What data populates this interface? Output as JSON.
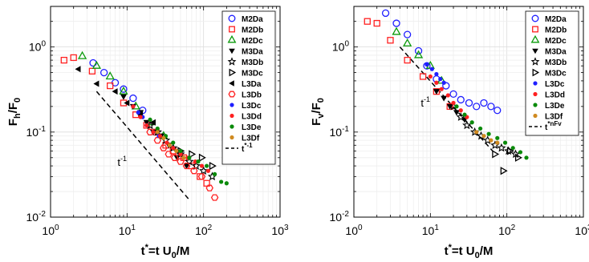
{
  "chart_data": [
    {
      "type": "scatter",
      "xscale": "log",
      "yscale": "log",
      "xlim": [
        1,
        1000
      ],
      "ylim": [
        0.01,
        3
      ],
      "xlabel": {
        "base": "t",
        "sup": "*",
        "rest": "=t U",
        "sub": "0",
        "tail": "/M"
      },
      "ylabel": {
        "base": "F",
        "sub1": "h",
        "mid": "/F",
        "sub2": "0"
      },
      "xticks": [
        {
          "v": 1,
          "b": "10",
          "e": "0"
        },
        {
          "v": 10,
          "b": "10",
          "e": "1"
        },
        {
          "v": 100,
          "b": "10",
          "e": "2"
        },
        {
          "v": 1000,
          "b": "10",
          "e": "3"
        }
      ],
      "yticks": [
        {
          "v": 0.01,
          "b": "10",
          "e": "-2"
        },
        {
          "v": 0.1,
          "b": "10",
          "e": "-1"
        },
        {
          "v": 1,
          "b": "10",
          "e": "0"
        }
      ],
      "annotation": {
        "base": "t",
        "sup": "-1",
        "x": 7.5,
        "y": 0.04
      },
      "fit_line": {
        "x": [
          4,
          65
        ],
        "y": [
          0.3,
          0.016
        ]
      },
      "legend": {
        "position": "top-right",
        "line_label_base": "t",
        "line_label_sup": "*-1"
      },
      "series": [
        {
          "name": "M2Da",
          "color": "#1f1fff",
          "marker": "circle-open",
          "x": [
            3.6,
            5,
            7,
            9,
            12,
            16
          ],
          "y": [
            0.65,
            0.5,
            0.38,
            0.32,
            0.25,
            0.18
          ]
        },
        {
          "name": "M2Db",
          "color": "#ff2020",
          "marker": "square-open",
          "x": [
            1.5,
            2,
            3.5,
            6,
            9,
            13,
            18,
            24,
            32,
            40,
            55,
            70,
            90,
            110
          ],
          "y": [
            0.7,
            0.75,
            0.52,
            0.35,
            0.22,
            0.16,
            0.12,
            0.1,
            0.07,
            0.06,
            0.05,
            0.04,
            0.03,
            0.025
          ]
        },
        {
          "name": "M2Dc",
          "color": "#0a9a0a",
          "marker": "triangle-open",
          "x": [
            2.6,
            4,
            6,
            9,
            13,
            20,
            30
          ],
          "y": [
            0.78,
            0.6,
            0.45,
            0.3,
            0.2,
            0.13,
            0.09
          ]
        },
        {
          "name": "M3Da",
          "color": "#000000",
          "marker": "triangle-down",
          "x": [
            9,
            12,
            15,
            18,
            22,
            28,
            35,
            45,
            60
          ],
          "y": [
            0.26,
            0.2,
            0.17,
            0.13,
            0.1,
            0.09,
            0.07,
            0.05,
            0.04
          ]
        },
        {
          "name": "M3Db",
          "color": "#000000",
          "marker": "star",
          "x": [
            20,
            25,
            32,
            40,
            50,
            65,
            80,
            100,
            130
          ],
          "y": [
            0.12,
            0.1,
            0.08,
            0.065,
            0.055,
            0.045,
            0.04,
            0.035,
            0.03
          ]
        },
        {
          "name": "M3Dc",
          "color": "#000000",
          "marker": "triangle-right-open",
          "x": [
            50,
            70,
            95,
            130
          ],
          "y": [
            0.06,
            0.055,
            0.05,
            0.04
          ]
        },
        {
          "name": "L3Da",
          "color": "#000000",
          "marker": "triangle-left",
          "x": [
            2.3,
            4,
            7,
            10,
            15,
            22
          ],
          "y": [
            0.55,
            0.37,
            0.3,
            0.22,
            0.16,
            0.13
          ]
        },
        {
          "name": "L3Db",
          "color": "#ff2020",
          "marker": "hexagon-open",
          "x": [
            20,
            25,
            30,
            35,
            42,
            50,
            60,
            75,
            95,
            120,
            140
          ],
          "y": [
            0.1,
            0.08,
            0.065,
            0.055,
            0.05,
            0.045,
            0.04,
            0.035,
            0.03,
            0.022,
            0.017
          ]
        },
        {
          "name": "L3Dc",
          "color": "#1f1fff",
          "marker": "dot",
          "x": [
            12,
            14,
            16,
            18,
            22,
            26
          ],
          "y": [
            0.2,
            0.17,
            0.15,
            0.12,
            0.1,
            0.09
          ]
        },
        {
          "name": "L3Dd",
          "color": "#ff2020",
          "marker": "dot",
          "x": [
            12,
            15,
            18,
            22,
            27,
            33,
            40,
            50,
            62,
            78,
            95,
            115
          ],
          "y": [
            0.2,
            0.15,
            0.12,
            0.1,
            0.09,
            0.075,
            0.065,
            0.055,
            0.05,
            0.045,
            0.04,
            0.035
          ]
        },
        {
          "name": "L3De",
          "color": "#0a8a0a",
          "marker": "dot",
          "x": [
            20,
            25,
            32,
            40,
            50,
            65,
            85,
            110,
            140,
            170,
            200
          ],
          "y": [
            0.14,
            0.11,
            0.09,
            0.075,
            0.06,
            0.05,
            0.045,
            0.04,
            0.032,
            0.026,
            0.025
          ]
        },
        {
          "name": "L3Df",
          "color": "#d08a20",
          "marker": "dot",
          "x": [
            25,
            30,
            36,
            44,
            55
          ],
          "y": [
            0.1,
            0.085,
            0.07,
            0.06,
            0.05
          ]
        }
      ]
    },
    {
      "type": "scatter",
      "xscale": "log",
      "yscale": "log",
      "xlim": [
        1,
        1000
      ],
      "ylim": [
        0.01,
        3
      ],
      "xlabel": {
        "base": "t",
        "sup": "*",
        "rest": "=t U",
        "sub": "0",
        "tail": "/M"
      },
      "ylabel": {
        "base": "F",
        "sub1": "v",
        "mid": "/F",
        "sub2": "0"
      },
      "xticks": [
        {
          "v": 1,
          "b": "10",
          "e": "0"
        },
        {
          "v": 10,
          "b": "10",
          "e": "1"
        },
        {
          "v": 100,
          "b": "10",
          "e": "2"
        },
        {
          "v": 1000,
          "b": "10",
          "e": "3"
        }
      ],
      "yticks": [
        {
          "v": 0.01,
          "b": "10",
          "e": "-2"
        },
        {
          "v": 0.1,
          "b": "10",
          "e": "-1"
        },
        {
          "v": 1,
          "b": "10",
          "e": "0"
        }
      ],
      "annotation": {
        "base": "t",
        "sup": "-1",
        "x": 7.5,
        "y": 0.2
      },
      "fit_line": {
        "x": [
          4,
          65
        ],
        "y": [
          1.0,
          0.06
        ]
      },
      "legend": {
        "position": "top-right",
        "line_label_base": "t",
        "line_label_sup": "*nFv"
      },
      "series": [
        {
          "name": "M2Da",
          "color": "#1f1fff",
          "marker": "circle-open",
          "x": [
            2.6,
            3.6,
            5,
            7,
            9,
            12,
            16,
            20,
            25,
            32,
            40,
            50,
            62,
            75
          ],
          "y": [
            2.5,
            1.9,
            1.4,
            0.9,
            0.6,
            0.42,
            0.35,
            0.28,
            0.24,
            0.22,
            0.2,
            0.22,
            0.2,
            0.18
          ]
        },
        {
          "name": "M2Db",
          "color": "#ff2020",
          "marker": "square-open",
          "x": [
            1.5,
            2,
            3,
            5,
            8,
            12,
            18
          ],
          "y": [
            2,
            1.9,
            1.2,
            0.7,
            0.45,
            0.3,
            0.2
          ]
        },
        {
          "name": "M2Dc",
          "color": "#0a9a0a",
          "marker": "triangle-open",
          "x": [
            3.6,
            5,
            7,
            10,
            14
          ],
          "y": [
            1.5,
            1.1,
            0.8,
            0.6,
            0.4
          ]
        },
        {
          "name": "M3Da",
          "color": "#000000",
          "marker": "triangle-down",
          "x": [
            12,
            15,
            18,
            22,
            28
          ],
          "y": [
            0.3,
            0.25,
            0.2,
            0.17,
            0.14
          ]
        },
        {
          "name": "M3Db",
          "color": "#000000",
          "marker": "star",
          "x": [
            20,
            25,
            30,
            38,
            46,
            56,
            70,
            85,
            105,
            130
          ],
          "y": [
            0.2,
            0.15,
            0.12,
            0.1,
            0.09,
            0.08,
            0.07,
            0.065,
            0.06,
            0.055
          ]
        },
        {
          "name": "M3Dc",
          "color": "#000000",
          "marker": "triangle-right-open",
          "x": [
            70,
            90,
            110,
            140
          ],
          "y": [
            0.055,
            0.035,
            0.06,
            0.05
          ]
        },
        {
          "name": "L3Dc",
          "color": "#1f1fff",
          "marker": "dot",
          "x": [
            9,
            10.5,
            12,
            13.5,
            15
          ],
          "y": [
            0.62,
            0.55,
            0.48,
            0.42,
            0.38
          ]
        },
        {
          "name": "L3Dd",
          "color": "#ff2020",
          "marker": "dot",
          "x": [
            10,
            12,
            14,
            17,
            20,
            25,
            30
          ],
          "y": [
            0.45,
            0.38,
            0.32,
            0.27,
            0.22,
            0.18,
            0.15
          ]
        },
        {
          "name": "L3De",
          "color": "#0a8a0a",
          "marker": "dot",
          "x": [
            22,
            28,
            35,
            45,
            58,
            75,
            95,
            120,
            150,
            180
          ],
          "y": [
            0.2,
            0.16,
            0.13,
            0.11,
            0.095,
            0.085,
            0.075,
            0.065,
            0.058,
            0.05
          ]
        },
        {
          "name": "L3Df",
          "color": "#d08a20",
          "marker": "dot",
          "x": [
            40,
            50,
            62,
            75
          ],
          "y": [
            0.1,
            0.09,
            0.08,
            0.075
          ]
        }
      ]
    }
  ]
}
